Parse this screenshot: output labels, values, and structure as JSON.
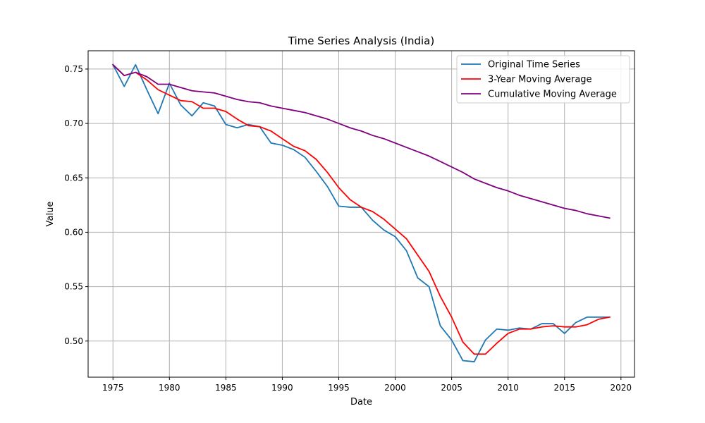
{
  "chart_data": {
    "type": "line",
    "title": "Time Series Analysis (India)",
    "xlabel": "Date",
    "ylabel": "Value",
    "xlim": [
      1972.8,
      2021.2
    ],
    "ylim": [
      0.4668,
      0.7668
    ],
    "xticks": [
      1975,
      1980,
      1985,
      1990,
      1995,
      2000,
      2005,
      2010,
      2015,
      2020
    ],
    "yticks": [
      0.5,
      0.55,
      0.6,
      0.65,
      0.7,
      0.75
    ],
    "ytick_labels": [
      "0.50",
      "0.55",
      "0.60",
      "0.65",
      "0.70",
      "0.75"
    ],
    "grid": true,
    "legend_position": "top-right",
    "x": [
      1975,
      1976,
      1977,
      1978,
      1979,
      1980,
      1981,
      1982,
      1983,
      1984,
      1985,
      1986,
      1987,
      1988,
      1989,
      1990,
      1991,
      1992,
      1993,
      1994,
      1995,
      1996,
      1997,
      1998,
      1999,
      2000,
      2001,
      2002,
      2003,
      2004,
      2005,
      2006,
      2007,
      2008,
      2009,
      2010,
      2011,
      2012,
      2013,
      2014,
      2015,
      2016,
      2017,
      2018,
      2019
    ],
    "series": [
      {
        "name": "Original Time Series",
        "color": "#1f77b4",
        "values": [
          0.754,
          0.734,
          0.754,
          0.731,
          0.709,
          0.737,
          0.717,
          0.707,
          0.719,
          0.716,
          0.699,
          0.696,
          0.699,
          0.697,
          0.682,
          0.68,
          0.676,
          0.669,
          0.656,
          0.642,
          0.624,
          0.623,
          0.623,
          0.611,
          0.602,
          0.596,
          0.583,
          0.558,
          0.55,
          0.514,
          0.501,
          0.482,
          0.481,
          0.501,
          0.511,
          0.51,
          0.512,
          0.511,
          0.516,
          0.516,
          0.507,
          0.517,
          0.522,
          0.522,
          0.522
        ]
      },
      {
        "name": "3-Year Moving Average",
        "color": "#ff0000",
        "values": [
          0.754,
          0.744,
          0.747,
          0.74,
          0.731,
          0.726,
          0.721,
          0.72,
          0.714,
          0.714,
          0.711,
          0.704,
          0.698,
          0.697,
          0.693,
          0.686,
          0.679,
          0.675,
          0.667,
          0.655,
          0.641,
          0.63,
          0.623,
          0.619,
          0.612,
          0.603,
          0.594,
          0.579,
          0.564,
          0.541,
          0.522,
          0.499,
          0.488,
          0.488,
          0.498,
          0.507,
          0.511,
          0.511,
          0.513,
          0.514,
          0.513,
          0.513,
          0.515,
          0.52,
          0.522
        ]
      },
      {
        "name": "Cumulative Moving Average",
        "color": "#800080",
        "values": [
          0.754,
          0.744,
          0.747,
          0.743,
          0.736,
          0.736,
          0.733,
          0.73,
          0.729,
          0.728,
          0.725,
          0.722,
          0.72,
          0.719,
          0.716,
          0.714,
          0.712,
          0.71,
          0.707,
          0.704,
          0.7,
          0.696,
          0.693,
          0.689,
          0.686,
          0.682,
          0.678,
          0.674,
          0.67,
          0.665,
          0.66,
          0.655,
          0.649,
          0.645,
          0.641,
          0.638,
          0.634,
          0.631,
          0.628,
          0.625,
          0.622,
          0.62,
          0.617,
          0.615,
          0.613
        ]
      }
    ]
  }
}
